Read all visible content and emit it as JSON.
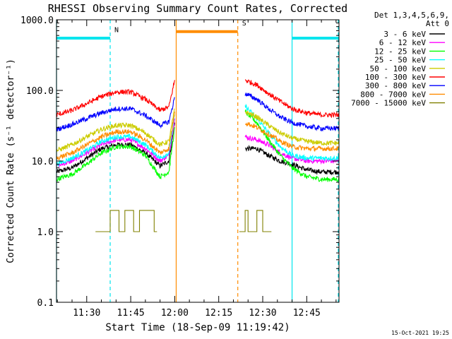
{
  "chart_data": {
    "type": "line",
    "title": "RHESSI Observing Summary Count Rates, Corrected",
    "xlabel": "Start Time (18-Sep-09 11:19:42)",
    "ylabel": "Corrected Count Rate (s⁻¹ detector⁻¹)",
    "yscale": "log",
    "ylim": [
      0.1,
      1000
    ],
    "xlim": [
      "11:19:42",
      "12:56:00"
    ],
    "x_ticks": [
      "11:30",
      "11:45",
      "12:00",
      "12:15",
      "12:30",
      "12:45"
    ],
    "y_ticks": [
      "1000.0",
      "100.0",
      "10.0",
      "1.0",
      "0.1"
    ],
    "legend": {
      "placement": "top-right",
      "header": [
        "Det 1,3,4,5,6,9,",
        "Att 0"
      ]
    },
    "timestamp": "15-Oct-2021 19:25",
    "flags": [
      {
        "label": "N",
        "color": "#00e5ee",
        "start": "11:19:42",
        "end": "11:38:00",
        "level": 550
      },
      {
        "label": "",
        "color": "#00e5ee",
        "start": "12:40:00",
        "end": "12:56:00",
        "level": 550
      },
      {
        "label": "S",
        "color": "#ff8c00",
        "start": "12:00:30",
        "end": "12:21:30",
        "level": 680
      }
    ],
    "markers": [
      {
        "time": "11:19:42",
        "color": "#00e5ee",
        "style": "solid"
      },
      {
        "time": "11:38:00",
        "color": "#00e5ee",
        "style": "dashed"
      },
      {
        "time": "12:40:00",
        "color": "#00e5ee",
        "style": "solid"
      },
      {
        "time": "12:59:00",
        "color": "#00e5ee",
        "style": "dashed"
      },
      {
        "time": "12:00:30",
        "color": "#ff8c00",
        "style": "solid"
      },
      {
        "time": "12:21:30",
        "color": "#ff8c00",
        "style": "dashed"
      }
    ],
    "series": [
      {
        "name": "3 - 6 keV",
        "color": "#000000",
        "x1": [
          "11:19:42",
          "11:25",
          "11:30",
          "11:35",
          "11:40",
          "11:45",
          "11:50",
          "11:55",
          "11:58",
          "12:00"
        ],
        "y1": [
          7,
          8,
          11,
          15,
          17,
          17,
          13,
          8.5,
          10,
          35
        ],
        "x2": [
          "12:24",
          "12:28",
          "12:32",
          "12:36",
          "12:40",
          "12:45",
          "12:50",
          "12:56"
        ],
        "y2": [
          15,
          15,
          12,
          10,
          9,
          7.5,
          7,
          7
        ]
      },
      {
        "name": "6 - 12 keV",
        "color": "#ff00ff",
        "x1": [
          "11:19:42",
          "11:25",
          "11:30",
          "11:35",
          "11:40",
          "11:45",
          "11:50",
          "11:55",
          "11:58",
          "12:00"
        ],
        "y1": [
          8.5,
          10,
          13,
          17,
          20,
          20,
          15,
          10,
          12,
          40
        ],
        "x2": [
          "12:24",
          "12:28",
          "12:32",
          "12:36",
          "12:40",
          "12:45",
          "12:50",
          "12:56"
        ],
        "y2": [
          22,
          20,
          17,
          13,
          11,
          10,
          10,
          10
        ]
      },
      {
        "name": "12 - 25 keV",
        "color": "#00ff00",
        "x1": [
          "11:19:42",
          "11:25",
          "11:30",
          "11:35",
          "11:40",
          "11:45",
          "11:50",
          "11:55",
          "11:58",
          "12:00"
        ],
        "y1": [
          5.5,
          6.5,
          9,
          13,
          16,
          16,
          12,
          6,
          7,
          30
        ],
        "x2": [
          "12:24",
          "12:28",
          "12:32",
          "12:36",
          "12:40",
          "12:45",
          "12:50",
          "12:56"
        ],
        "y2": [
          50,
          35,
          20,
          12,
          8,
          6,
          5.5,
          5.5
        ]
      },
      {
        "name": "25 - 50 keV",
        "color": "#00ffff",
        "x1": [
          "11:19:42",
          "11:25",
          "11:30",
          "11:35",
          "11:40",
          "11:45",
          "11:50",
          "11:55",
          "11:58",
          "12:00"
        ],
        "y1": [
          9,
          11,
          14,
          19,
          22,
          22,
          17,
          11,
          13,
          45
        ],
        "x2": [
          "12:24",
          "12:28",
          "12:32",
          "12:36",
          "12:40",
          "12:45",
          "12:50",
          "12:56"
        ],
        "y2": [
          60,
          40,
          25,
          16,
          12,
          11,
          11,
          11
        ]
      },
      {
        "name": "50 - 100 keV",
        "color": "#cccc00",
        "x1": [
          "11:19:42",
          "11:25",
          "11:30",
          "11:35",
          "11:40",
          "11:45",
          "11:50",
          "11:55",
          "11:58",
          "12:00"
        ],
        "y1": [
          14,
          17,
          22,
          28,
          32,
          32,
          25,
          17,
          19,
          55
        ],
        "x2": [
          "12:24",
          "12:28",
          "12:32",
          "12:36",
          "12:40",
          "12:45",
          "12:50",
          "12:56"
        ],
        "y2": [
          50,
          42,
          32,
          25,
          21,
          19,
          18,
          18
        ]
      },
      {
        "name": "100 - 300 keV",
        "color": "#ff0000",
        "x1": [
          "11:19:42",
          "11:25",
          "11:30",
          "11:35",
          "11:40",
          "11:45",
          "11:50",
          "11:55",
          "11:58",
          "12:00"
        ],
        "y1": [
          45,
          52,
          65,
          82,
          95,
          95,
          75,
          52,
          58,
          140
        ],
        "x2": [
          "12:24",
          "12:28",
          "12:32",
          "12:36",
          "12:40",
          "12:45",
          "12:50",
          "12:56"
        ],
        "y2": [
          140,
          120,
          90,
          70,
          55,
          48,
          45,
          45
        ]
      },
      {
        "name": "300 - 800 keV",
        "color": "#0000ff",
        "x1": [
          "11:19:42",
          "11:25",
          "11:30",
          "11:35",
          "11:40",
          "11:45",
          "11:50",
          "11:55",
          "11:58",
          "12:00"
        ],
        "y1": [
          28,
          33,
          40,
          48,
          55,
          55,
          44,
          32,
          36,
          80
        ],
        "x2": [
          "12:24",
          "12:28",
          "12:32",
          "12:36",
          "12:40",
          "12:45",
          "12:50",
          "12:56"
        ],
        "y2": [
          90,
          75,
          55,
          42,
          35,
          31,
          29,
          29
        ]
      },
      {
        "name": "800 - 7000 keV",
        "color": "#ff8c00",
        "x1": [
          "11:19:42",
          "11:25",
          "11:30",
          "11:35",
          "11:40",
          "11:45",
          "11:50",
          "11:55",
          "11:58",
          "12:00"
        ],
        "y1": [
          11,
          13,
          17,
          22,
          26,
          26,
          20,
          13,
          15,
          50
        ],
        "x2": [
          "12:24",
          "12:28",
          "12:32",
          "12:36",
          "12:40",
          "12:45",
          "12:50",
          "12:56"
        ],
        "y2": [
          35,
          30,
          24,
          19,
          16,
          15,
          15,
          15
        ]
      },
      {
        "name": "7000 - 15000 keV",
        "color": "#808000",
        "x1": [
          "11:33",
          "11:37",
          "11:38",
          "11:41",
          "11:43",
          "11:46",
          "11:48",
          "11:53"
        ],
        "y1": [
          1,
          1,
          2,
          1,
          2,
          1,
          2,
          1
        ],
        "x2": [
          "12:22",
          "12:24",
          "12:25",
          "12:28",
          "12:30",
          "12:32"
        ],
        "y2": [
          1,
          2,
          1,
          2,
          1,
          1
        ]
      }
    ]
  }
}
